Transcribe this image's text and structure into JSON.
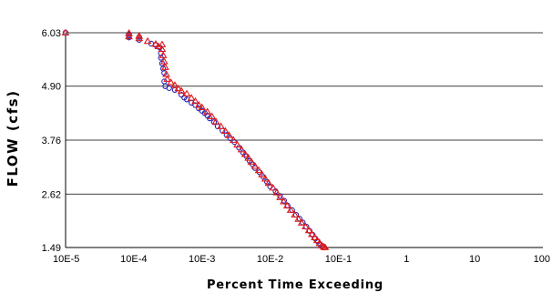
{
  "chart_data": {
    "type": "scatter",
    "xlabel": "Percent Time Exceeding",
    "ylabel": "FLOW (cfs)",
    "x_scale": "log",
    "xlim": [
      1e-05,
      100
    ],
    "ylim": [
      1.49,
      6.03
    ],
    "x_ticks": [
      "10E-5",
      "10E-4",
      "10E-3",
      "10E-2",
      "10E-1",
      "1",
      "10",
      "100"
    ],
    "y_ticks": [
      "1.49",
      "2.62",
      "3.76",
      "4.90",
      "6.03"
    ],
    "grid": {
      "horizontal": true,
      "vertical": false
    },
    "legend": "none",
    "series": [
      {
        "marker": "circle",
        "color": "#2828b4",
        "points": [
          [
            1e-05,
            6.03
          ],
          [
            8.5e-05,
            6.0
          ],
          [
            8.5e-05,
            5.97
          ],
          [
            8.5e-05,
            5.93
          ],
          [
            0.00012,
            5.94
          ],
          [
            0.00012,
            5.88
          ],
          [
            0.00018,
            5.8
          ],
          [
            0.00021,
            5.77
          ],
          [
            0.00024,
            5.72
          ],
          [
            0.00025,
            5.6
          ],
          [
            0.00025,
            5.5
          ],
          [
            0.00026,
            5.38
          ],
          [
            0.00027,
            5.27
          ],
          [
            0.00028,
            5.18
          ],
          [
            0.00028,
            5.0
          ],
          [
            0.00029,
            4.9
          ],
          [
            0.00033,
            4.86
          ],
          [
            0.0004,
            4.82
          ],
          [
            0.0005,
            4.72
          ],
          [
            0.00055,
            4.66
          ],
          [
            0.0006,
            4.62
          ],
          [
            0.0007,
            4.55
          ],
          [
            0.0008,
            4.5
          ],
          [
            0.0009,
            4.43
          ],
          [
            0.001,
            4.38
          ],
          [
            0.0011,
            4.33
          ],
          [
            0.0012,
            4.28
          ],
          [
            0.0013,
            4.22
          ],
          [
            0.0015,
            4.14
          ],
          [
            0.0017,
            4.05
          ],
          [
            0.002,
            3.96
          ],
          [
            0.0023,
            3.87
          ],
          [
            0.0026,
            3.8
          ],
          [
            0.003,
            3.72
          ],
          [
            0.0035,
            3.6
          ],
          [
            0.004,
            3.5
          ],
          [
            0.0045,
            3.42
          ],
          [
            0.005,
            3.32
          ],
          [
            0.0055,
            3.25
          ],
          [
            0.006,
            3.17
          ],
          [
            0.007,
            3.08
          ],
          [
            0.008,
            2.98
          ],
          [
            0.009,
            2.88
          ],
          [
            0.01,
            2.78
          ],
          [
            0.012,
            2.68
          ],
          [
            0.014,
            2.58
          ],
          [
            0.016,
            2.48
          ],
          [
            0.018,
            2.38
          ],
          [
            0.021,
            2.28
          ],
          [
            0.024,
            2.18
          ],
          [
            0.027,
            2.1
          ],
          [
            0.03,
            2.02
          ],
          [
            0.034,
            1.93
          ],
          [
            0.038,
            1.84
          ],
          [
            0.042,
            1.76
          ],
          [
            0.046,
            1.68
          ],
          [
            0.05,
            1.62
          ],
          [
            0.054,
            1.56
          ],
          [
            0.058,
            1.52
          ],
          [
            0.062,
            1.49
          ]
        ]
      },
      {
        "marker": "triangle",
        "color": "#e01818",
        "points": [
          [
            1e-05,
            6.03
          ],
          [
            8.5e-05,
            6.02
          ],
          [
            8.5e-05,
            5.95
          ],
          [
            0.00012,
            5.96
          ],
          [
            0.00012,
            5.91
          ],
          [
            0.00016,
            5.85
          ],
          [
            0.00021,
            5.79
          ],
          [
            0.00023,
            5.74
          ],
          [
            0.00026,
            5.78
          ],
          [
            0.00026,
            5.68
          ],
          [
            0.00027,
            5.55
          ],
          [
            0.00028,
            5.42
          ],
          [
            0.00029,
            5.3
          ],
          [
            0.0003,
            5.15
          ],
          [
            0.00031,
            5.05
          ],
          [
            0.00035,
            4.98
          ],
          [
            0.0004,
            4.92
          ],
          [
            0.00045,
            4.85
          ],
          [
            0.0005,
            4.8
          ],
          [
            0.0006,
            4.74
          ],
          [
            0.0007,
            4.65
          ],
          [
            0.0008,
            4.58
          ],
          [
            0.0009,
            4.5
          ],
          [
            0.001,
            4.45
          ],
          [
            0.0012,
            4.36
          ],
          [
            0.0014,
            4.26
          ],
          [
            0.0016,
            4.15
          ],
          [
            0.0019,
            4.05
          ],
          [
            0.0022,
            3.95
          ],
          [
            0.0025,
            3.86
          ],
          [
            0.0029,
            3.76
          ],
          [
            0.0033,
            3.66
          ],
          [
            0.0038,
            3.56
          ],
          [
            0.0043,
            3.46
          ],
          [
            0.0048,
            3.38
          ],
          [
            0.0053,
            3.3
          ],
          [
            0.006,
            3.21
          ],
          [
            0.0068,
            3.12
          ],
          [
            0.0076,
            3.03
          ],
          [
            0.0085,
            2.94
          ],
          [
            0.0095,
            2.85
          ],
          [
            0.011,
            2.75
          ],
          [
            0.0125,
            2.65
          ],
          [
            0.014,
            2.55
          ],
          [
            0.0158,
            2.46
          ],
          [
            0.0178,
            2.37
          ],
          [
            0.02,
            2.28
          ],
          [
            0.023,
            2.18
          ],
          [
            0.026,
            2.09
          ],
          [
            0.029,
            2.01
          ],
          [
            0.033,
            1.93
          ],
          [
            0.037,
            1.85
          ],
          [
            0.041,
            1.77
          ],
          [
            0.045,
            1.7
          ],
          [
            0.049,
            1.64
          ],
          [
            0.053,
            1.58
          ],
          [
            0.057,
            1.53
          ],
          [
            0.061,
            1.5
          ],
          [
            0.064,
            1.49
          ]
        ]
      }
    ]
  }
}
